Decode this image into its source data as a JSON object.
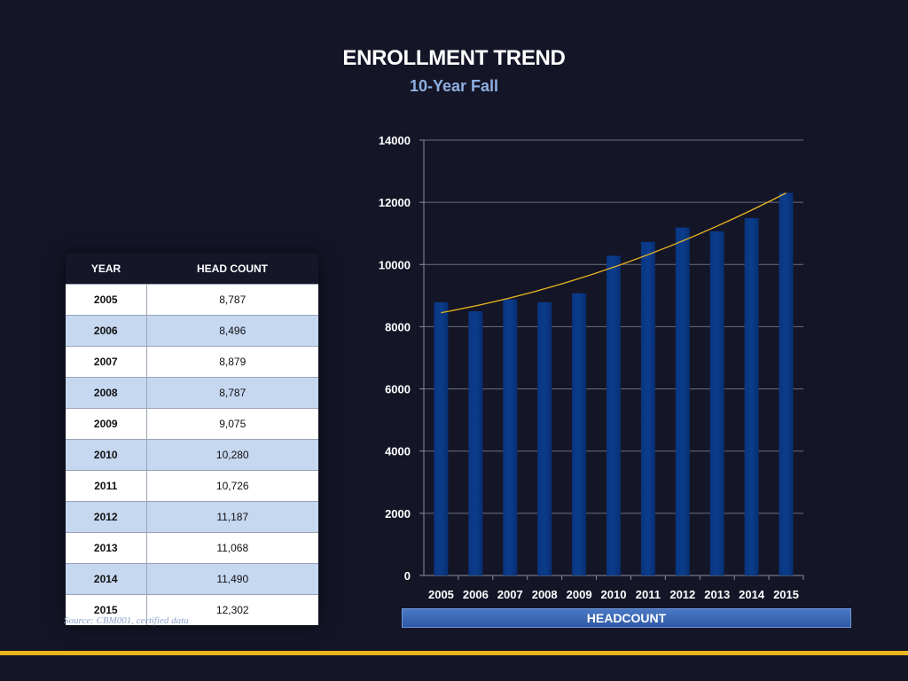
{
  "header": {
    "title": "ENROLLMENT TREND",
    "subtitle": "10-Year Fall"
  },
  "table": {
    "headers": [
      "YEAR",
      "HEAD COUNT"
    ],
    "rows": [
      [
        "2005",
        "8,787"
      ],
      [
        "2006",
        "8,496"
      ],
      [
        "2007",
        "8,879"
      ],
      [
        "2008",
        "8,787"
      ],
      [
        "2009",
        "9,075"
      ],
      [
        "2010",
        "10,280"
      ],
      [
        "2011",
        "10,726"
      ],
      [
        "2012",
        "11,187"
      ],
      [
        "2013",
        "11,068"
      ],
      [
        "2014",
        "11,490"
      ],
      [
        "2015",
        "12,302"
      ]
    ]
  },
  "source": "Source: CBM001, certified data",
  "colors": {
    "bar": "#0b3d8c",
    "trend": "#e8b51e",
    "accent": "#e8b51e"
  },
  "chart_data": {
    "type": "bar",
    "title": "",
    "xlabel": "HEADCOUNT",
    "ylabel": "",
    "categories": [
      "2005",
      "2006",
      "2007",
      "2008",
      "2009",
      "2010",
      "2011",
      "2012",
      "2013",
      "2014",
      "2015"
    ],
    "values": [
      8787,
      8496,
      8879,
      8787,
      9075,
      10280,
      10726,
      11187,
      11068,
      11490,
      12302
    ],
    "ylim": [
      0,
      14000
    ],
    "yticks": [
      0,
      2000,
      4000,
      6000,
      8000,
      10000,
      12000,
      14000
    ],
    "trendline": {
      "type": "polynomial",
      "start": 8450,
      "end": 12300
    },
    "grid": true
  }
}
